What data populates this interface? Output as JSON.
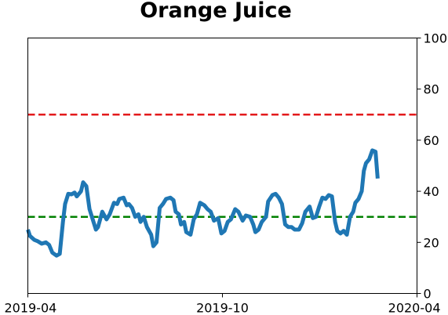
{
  "chart_data": {
    "type": "line",
    "title": "Orange Juice",
    "xlabel": "",
    "ylabel": "",
    "x_start": "2019-04-01",
    "x_end": "2020-04-01",
    "xlim": [
      "2019-04-01",
      "2020-04-01"
    ],
    "ylim": [
      0,
      100
    ],
    "y_axis_side": "right",
    "x_ticks": [
      "2019-04",
      "2019-10",
      "2020-04"
    ],
    "y_ticks": [
      0,
      20,
      40,
      60,
      80,
      100
    ],
    "grid": false,
    "legend": "none",
    "reference_lines": [
      {
        "y": 70,
        "color": "#e31a1c",
        "style": "dashed"
      },
      {
        "y": 30,
        "color": "#008000",
        "style": "dashed"
      }
    ],
    "series": [
      {
        "color": "#1f77b4",
        "points": [
          [
            "2019-04-01",
            25
          ],
          [
            "2019-04-03",
            22.5
          ],
          [
            "2019-04-07",
            21
          ],
          [
            "2019-04-10",
            20.5
          ],
          [
            "2019-04-14",
            19.5
          ],
          [
            "2019-04-18",
            20
          ],
          [
            "2019-04-21",
            19
          ],
          [
            "2019-04-24",
            16
          ],
          [
            "2019-04-28",
            14.8
          ],
          [
            "2019-05-01",
            15.5
          ],
          [
            "2019-05-04",
            28
          ],
          [
            "2019-05-06",
            35
          ],
          [
            "2019-05-09",
            39
          ],
          [
            "2019-05-12",
            38.8
          ],
          [
            "2019-05-15",
            39.5
          ],
          [
            "2019-05-17",
            38
          ],
          [
            "2019-05-21",
            40
          ],
          [
            "2019-05-23",
            43.5
          ],
          [
            "2019-05-26",
            42
          ],
          [
            "2019-05-29",
            33
          ],
          [
            "2019-06-01",
            29
          ],
          [
            "2019-06-04",
            25
          ],
          [
            "2019-06-06",
            26
          ],
          [
            "2019-06-10",
            32
          ],
          [
            "2019-06-14",
            29
          ],
          [
            "2019-06-17",
            31
          ],
          [
            "2019-06-21",
            35.5
          ],
          [
            "2019-06-24",
            35
          ],
          [
            "2019-06-26",
            37
          ],
          [
            "2019-06-30",
            37.5
          ],
          [
            "2019-07-03",
            34.5
          ],
          [
            "2019-07-05",
            35
          ],
          [
            "2019-07-08",
            33.5
          ],
          [
            "2019-07-11",
            30
          ],
          [
            "2019-07-14",
            31
          ],
          [
            "2019-07-16",
            28
          ],
          [
            "2019-07-19",
            30
          ],
          [
            "2019-07-22",
            26
          ],
          [
            "2019-07-26",
            23
          ],
          [
            "2019-07-28",
            18.5
          ],
          [
            "2019-07-31",
            20
          ],
          [
            "2019-08-03",
            33.5
          ],
          [
            "2019-08-06",
            35
          ],
          [
            "2019-08-09",
            37
          ],
          [
            "2019-08-13",
            37.5
          ],
          [
            "2019-08-16",
            36.5
          ],
          [
            "2019-08-18",
            32
          ],
          [
            "2019-08-21",
            31
          ],
          [
            "2019-08-23",
            27
          ],
          [
            "2019-08-26",
            28
          ],
          [
            "2019-08-28",
            24
          ],
          [
            "2019-09-01",
            23
          ],
          [
            "2019-09-04",
            29
          ],
          [
            "2019-09-07",
            31
          ],
          [
            "2019-09-10",
            35.5
          ],
          [
            "2019-09-14",
            34.5
          ],
          [
            "2019-09-17",
            33
          ],
          [
            "2019-09-20",
            32
          ],
          [
            "2019-09-23",
            28.5
          ],
          [
            "2019-09-27",
            29.5
          ],
          [
            "2019-09-30",
            23.5
          ],
          [
            "2019-10-03",
            24.5
          ],
          [
            "2019-10-06",
            28
          ],
          [
            "2019-10-09",
            29
          ],
          [
            "2019-10-13",
            33
          ],
          [
            "2019-10-16",
            32
          ],
          [
            "2019-10-20",
            28.5
          ],
          [
            "2019-10-23",
            30.5
          ],
          [
            "2019-10-27",
            30
          ],
          [
            "2019-10-30",
            27
          ],
          [
            "2019-11-01",
            24
          ],
          [
            "2019-11-04",
            25
          ],
          [
            "2019-11-07",
            28
          ],
          [
            "2019-11-11",
            30
          ],
          [
            "2019-11-13",
            36
          ],
          [
            "2019-11-17",
            38.5
          ],
          [
            "2019-11-20",
            39
          ],
          [
            "2019-11-23",
            37.5
          ],
          [
            "2019-11-26",
            35
          ],
          [
            "2019-11-29",
            27
          ],
          [
            "2019-12-02",
            26
          ],
          [
            "2019-12-05",
            26
          ],
          [
            "2019-12-08",
            25
          ],
          [
            "2019-12-12",
            25
          ],
          [
            "2019-12-15",
            27.5
          ],
          [
            "2019-12-18",
            32
          ],
          [
            "2019-12-22",
            34
          ],
          [
            "2019-12-25",
            29.5
          ],
          [
            "2019-12-28",
            30
          ],
          [
            "2019-12-31",
            34
          ],
          [
            "2020-01-03",
            37.5
          ],
          [
            "2020-01-06",
            37
          ],
          [
            "2020-01-09",
            38.5
          ],
          [
            "2020-01-12",
            38
          ],
          [
            "2020-01-15",
            28
          ],
          [
            "2020-01-17",
            24.5
          ],
          [
            "2020-01-20",
            23.5
          ],
          [
            "2020-01-23",
            24.5
          ],
          [
            "2020-01-26",
            23
          ],
          [
            "2020-01-29",
            30
          ],
          [
            "2020-02-01",
            32
          ],
          [
            "2020-02-03",
            35.5
          ],
          [
            "2020-02-06",
            37
          ],
          [
            "2020-02-09",
            40
          ],
          [
            "2020-02-11",
            48
          ],
          [
            "2020-02-13",
            51
          ],
          [
            "2020-02-16",
            52.5
          ],
          [
            "2020-02-19",
            56
          ],
          [
            "2020-02-22",
            55.5
          ],
          [
            "2020-02-24",
            45
          ]
        ]
      }
    ],
    "colors": {
      "line": "#1f77b4",
      "upper_threshold": "#e31a1c",
      "lower_threshold": "#008000",
      "axes": "#000000",
      "background": "#ffffff"
    }
  }
}
